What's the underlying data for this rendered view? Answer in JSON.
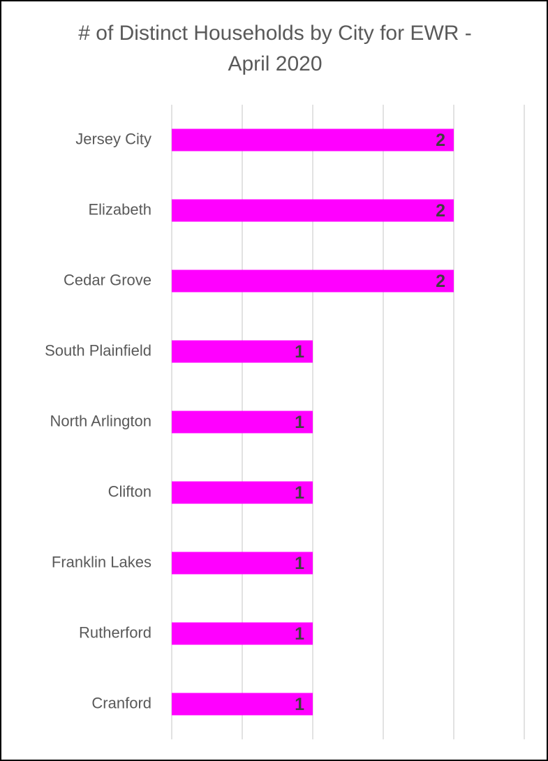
{
  "chart_data": {
    "type": "bar",
    "orientation": "horizontal",
    "title": "# of Distinct Households by City for EWR - April 2020",
    "categories": [
      "Jersey City",
      "Elizabeth",
      "Cedar Grove",
      "South Plainfield",
      "North Arlington",
      "Clifton",
      "Franklin Lakes",
      "Rutherford",
      "Cranford"
    ],
    "values": [
      2,
      2,
      2,
      1,
      1,
      1,
      1,
      1,
      1
    ],
    "color": "#ff00ff",
    "xlim": [
      0,
      2.5
    ],
    "xticks": [
      0,
      0.5,
      1,
      1.5,
      2,
      2.5
    ],
    "grid": true
  }
}
